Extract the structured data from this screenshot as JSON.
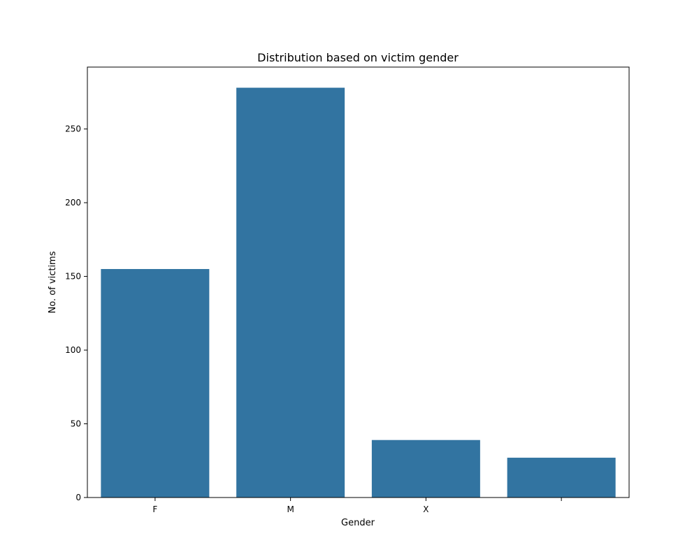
{
  "chart_data": {
    "type": "bar",
    "title": "Distribution based on victim gender",
    "xlabel": "Gender",
    "ylabel": "No. of victims",
    "categories": [
      "F",
      "M",
      "X",
      ""
    ],
    "values": [
      155,
      278,
      39,
      27
    ],
    "ylim": [
      0,
      292
    ],
    "yticks": [
      0,
      50,
      100,
      150,
      200,
      250
    ],
    "bar_color": "#3274a1",
    "grid": false,
    "legend": "none"
  }
}
